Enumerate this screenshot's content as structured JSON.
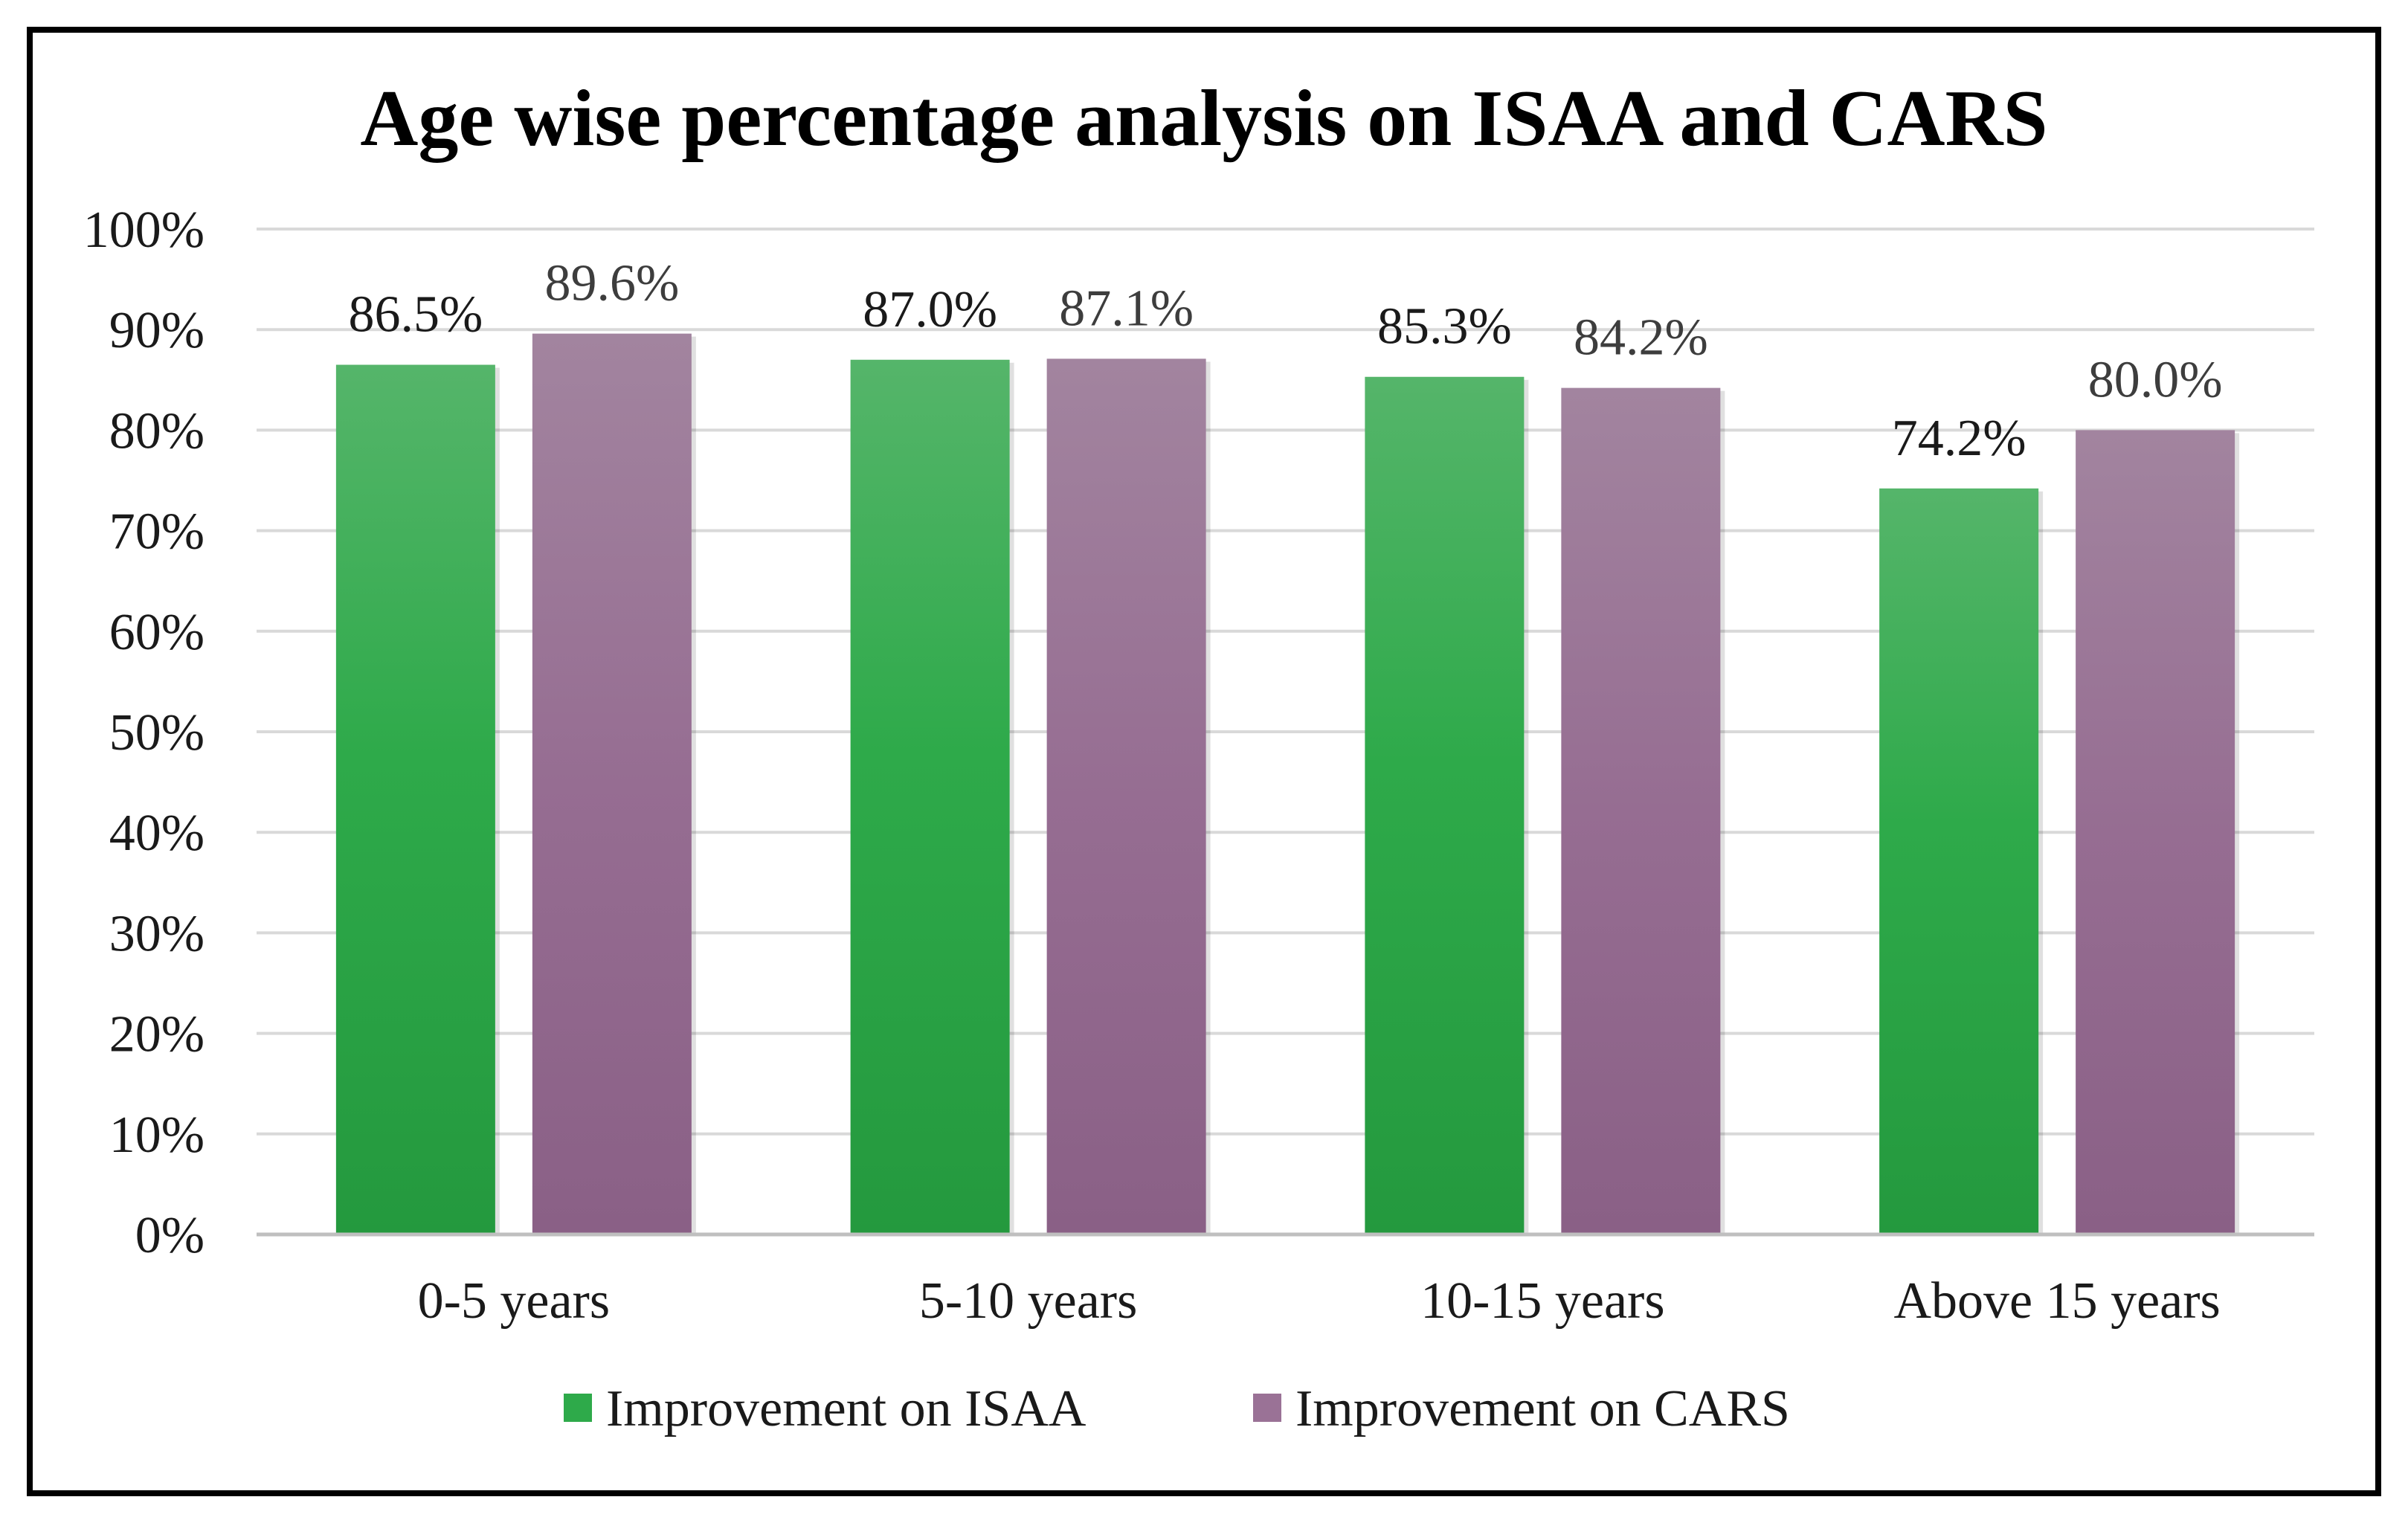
{
  "chart_data": {
    "type": "bar",
    "title": "Age wise percentage analysis on ISAA and CARS",
    "categories": [
      "0-5 years",
      "5-10 years",
      "10-15 years",
      "Above 15 years"
    ],
    "series": [
      {
        "name": "Improvement on ISAA",
        "values": [
          86.5,
          87.0,
          85.3,
          74.2
        ],
        "labels": [
          "86.5%",
          "87.0%",
          "85.3%",
          "74.2%"
        ],
        "color": "#2eaa4a"
      },
      {
        "name": "Improvement on CARS",
        "values": [
          89.6,
          87.1,
          84.2,
          80.0
        ],
        "labels": [
          "89.6%",
          "87.1%",
          "84.2%",
          "80.0%"
        ],
        "color": "#9a7296"
      }
    ],
    "y_ticks": [
      "0%",
      "10%",
      "20%",
      "30%",
      "40%",
      "50%",
      "60%",
      "70%",
      "80%",
      "90%",
      "100%"
    ],
    "ylim": [
      0,
      100
    ],
    "grid": true,
    "legend_position": "bottom"
  }
}
